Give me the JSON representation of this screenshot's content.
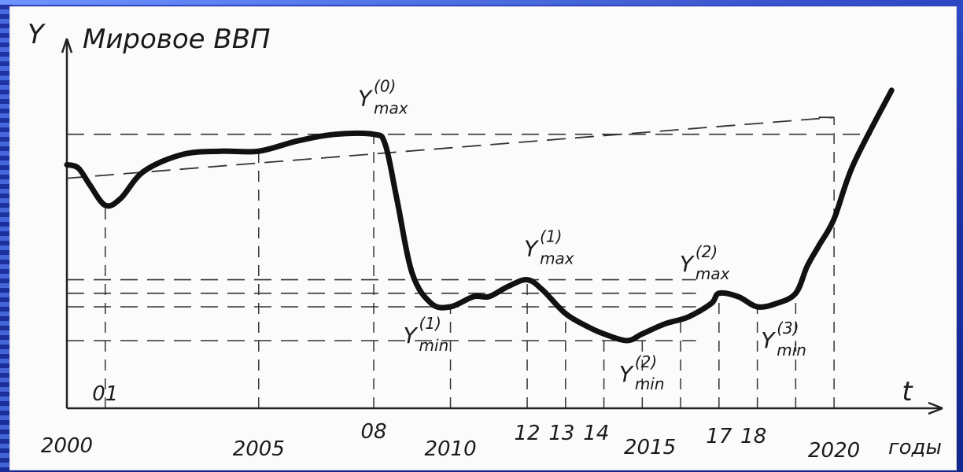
{
  "chart_data": {
    "type": "line",
    "title": "",
    "ylabel_symbol": "Y",
    "ylabel": "Мировое ВВП",
    "xlabel": "t",
    "x_unit_label": "годы",
    "x_ticks": [
      "2000",
      "01",
      "2005",
      "08",
      "2010",
      "12",
      "13",
      "14",
      "2015",
      "17",
      "18",
      "2020"
    ],
    "series": [
      {
        "values": [
          [
            2000.0,
            0.72
          ],
          [
            2000.3,
            0.71
          ],
          [
            2000.6,
            0.66
          ],
          [
            2001.0,
            0.6
          ],
          [
            2001.4,
            0.62
          ],
          [
            2002.0,
            0.7
          ],
          [
            2003.0,
            0.75
          ],
          [
            2004.0,
            0.76
          ],
          [
            2005.0,
            0.76
          ],
          [
            2006.0,
            0.79
          ],
          [
            2007.0,
            0.81
          ],
          [
            2008.0,
            0.81
          ],
          [
            2008.3,
            0.78
          ],
          [
            2008.6,
            0.62
          ],
          [
            2009.0,
            0.4
          ],
          [
            2009.5,
            0.31
          ],
          [
            2010.0,
            0.3
          ],
          [
            2010.6,
            0.33
          ],
          [
            2011.0,
            0.33
          ],
          [
            2011.5,
            0.36
          ],
          [
            2012.0,
            0.38
          ],
          [
            2012.4,
            0.35
          ],
          [
            2013.0,
            0.28
          ],
          [
            2013.6,
            0.24
          ],
          [
            2014.0,
            0.22
          ],
          [
            2014.6,
            0.2
          ],
          [
            2015.0,
            0.22
          ],
          [
            2015.6,
            0.25
          ],
          [
            2016.2,
            0.27
          ],
          [
            2016.8,
            0.31
          ],
          [
            2017.0,
            0.34
          ],
          [
            2017.5,
            0.33
          ],
          [
            2018.0,
            0.3
          ],
          [
            2018.5,
            0.31
          ],
          [
            2019.0,
            0.34
          ],
          [
            2019.3,
            0.42
          ],
          [
            2019.6,
            0.48
          ],
          [
            2020.0,
            0.56
          ],
          [
            2020.5,
            0.72
          ],
          [
            2021.5,
            0.94
          ]
        ]
      }
    ],
    "trend_line": [
      [
        2000.0,
        0.68
      ],
      [
        2020.0,
        0.86
      ]
    ],
    "annotations": [
      {
        "base": "Y",
        "sup": "(0)",
        "sub": "max",
        "x": 2008.0,
        "y": 0.81
      },
      {
        "base": "Y",
        "sup": "(1)",
        "sub": "min",
        "x": 2010.0,
        "y": 0.3
      },
      {
        "base": "Y",
        "sup": "(1)",
        "sub": "max",
        "x": 2012.0,
        "y": 0.38
      },
      {
        "base": "Y",
        "sup": "(2)",
        "sub": "min",
        "x": 2014.6,
        "y": 0.2
      },
      {
        "base": "Y",
        "sup": "(2)",
        "sub": "max",
        "x": 2017.0,
        "y": 0.34
      },
      {
        "base": "Y",
        "sup": "(3)",
        "sub": "min",
        "x": 2018.3,
        "y": 0.3
      }
    ],
    "guides": {
      "horizontal": [
        0.81,
        0.38,
        0.34,
        0.3,
        0.2
      ],
      "vertical": [
        2001,
        2005,
        2008,
        2010,
        2012,
        2013,
        2014,
        2015,
        2016,
        2017,
        2018,
        2019,
        2020
      ]
    },
    "grid": false,
    "legend": "none"
  }
}
